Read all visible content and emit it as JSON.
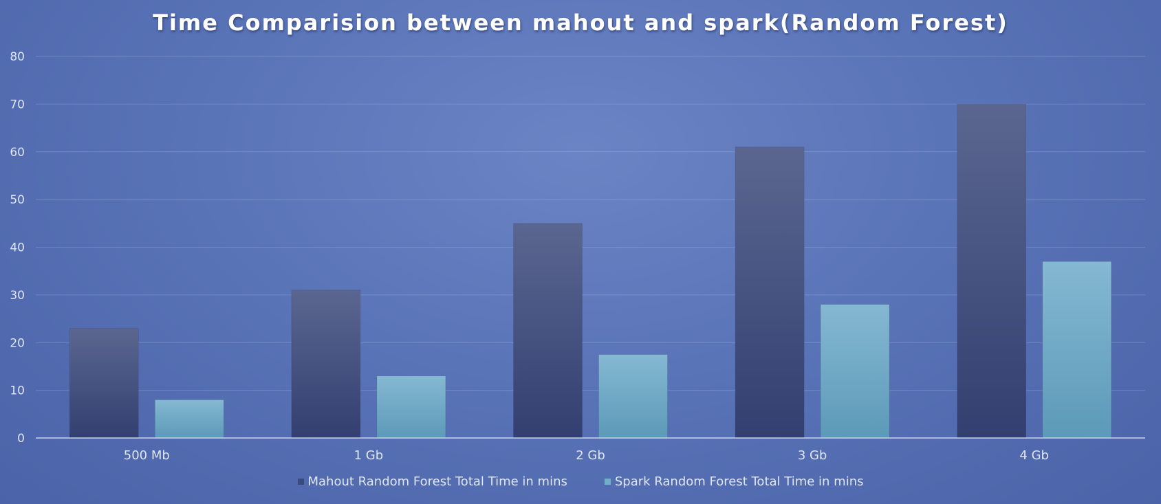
{
  "chart_data": {
    "type": "bar",
    "title": "Time Comparision between mahout and spark(Random Forest)",
    "xlabel": "",
    "ylabel": "",
    "categories": [
      "500 Mb",
      "1 Gb",
      "2 Gb",
      "3 Gb",
      "4 Gb"
    ],
    "series": [
      {
        "name": "Mahout Random Forest Total Time in mins",
        "values": [
          23,
          31,
          45,
          61,
          70
        ],
        "color": "#3a4a7e"
      },
      {
        "name": "Spark Random Forest Total Time in mins",
        "values": [
          8,
          13,
          17.5,
          28,
          37
        ],
        "color": "#6fb0c9"
      }
    ],
    "ylim": [
      0,
      80
    ],
    "yticks": [
      0,
      10,
      20,
      30,
      40,
      50,
      60,
      70,
      80
    ],
    "grid": true,
    "legend_position": "bottom"
  }
}
